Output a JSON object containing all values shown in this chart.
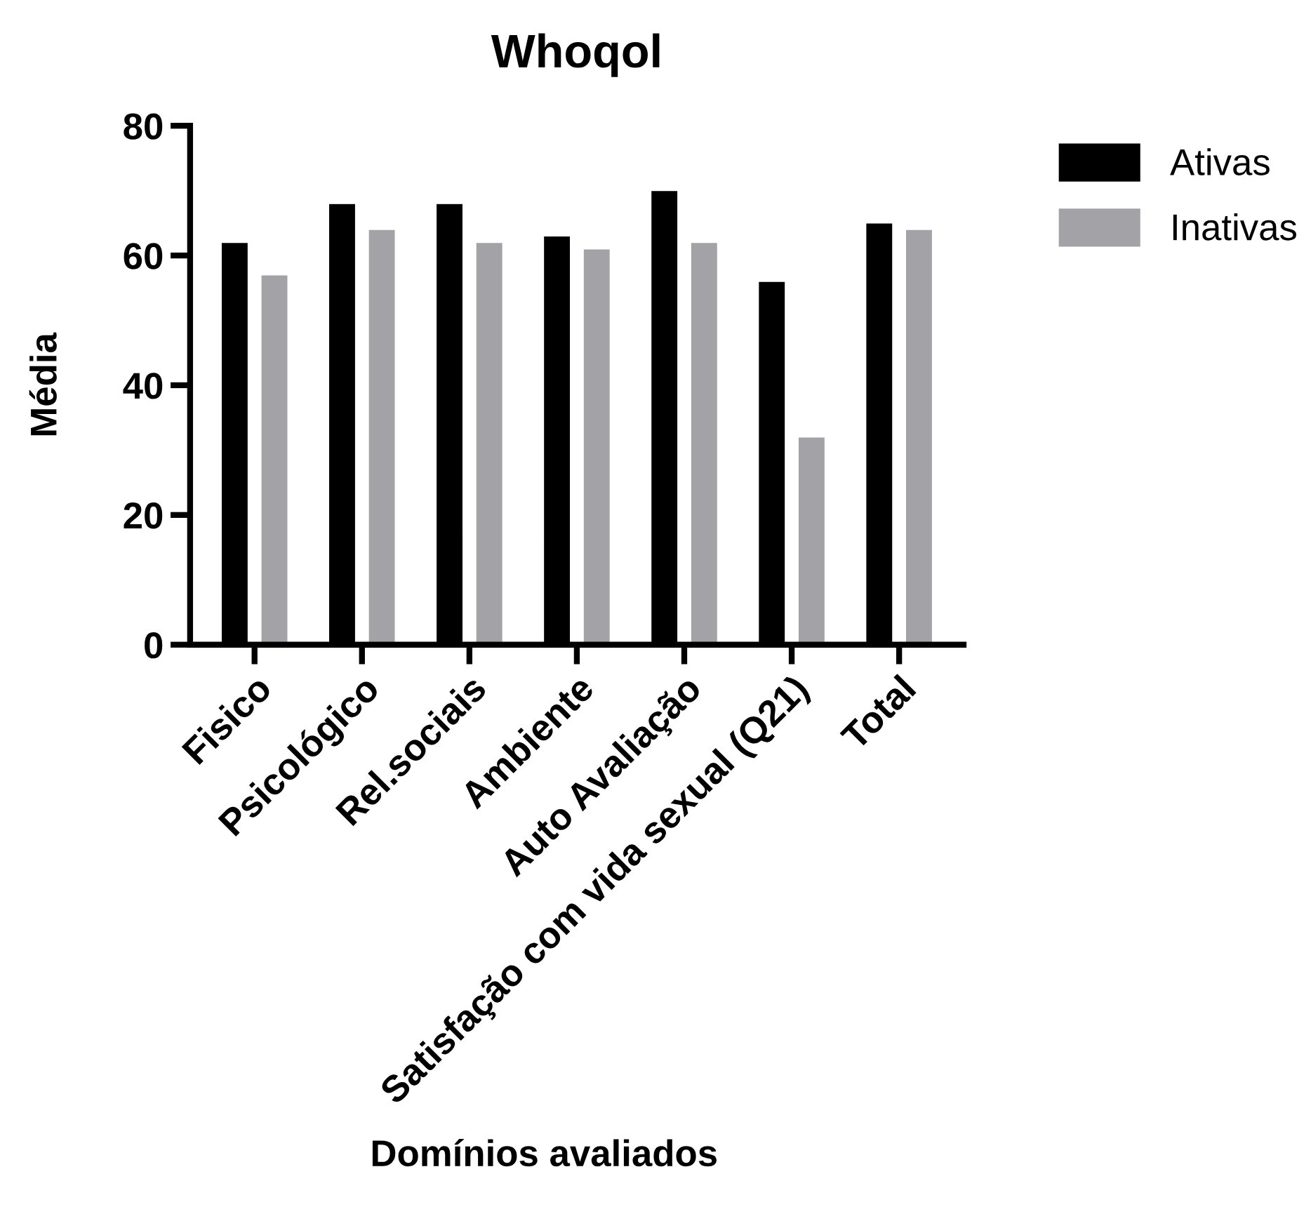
{
  "chart_data": {
    "type": "bar",
    "title": "Whoqol",
    "xlabel": "Domínios avaliados",
    "ylabel": "Média",
    "categories": [
      "Fisico",
      "Psicológico",
      "Rel.sociais",
      "Ambiente",
      "Auto Avaliação",
      "Satisfação com vida sexual (Q21)",
      "Total"
    ],
    "series": [
      {
        "name": "Ativas",
        "color": "#000000",
        "values": [
          62,
          68,
          68,
          63,
          70,
          56,
          65
        ]
      },
      {
        "name": "Inativas",
        "color": "#a3a2a6",
        "values": [
          57,
          64,
          62,
          61,
          62,
          32,
          64
        ]
      }
    ],
    "ylim": [
      0,
      80
    ],
    "yticks": [
      0,
      20,
      40,
      60,
      80
    ],
    "grid": false,
    "legend": "top right"
  }
}
